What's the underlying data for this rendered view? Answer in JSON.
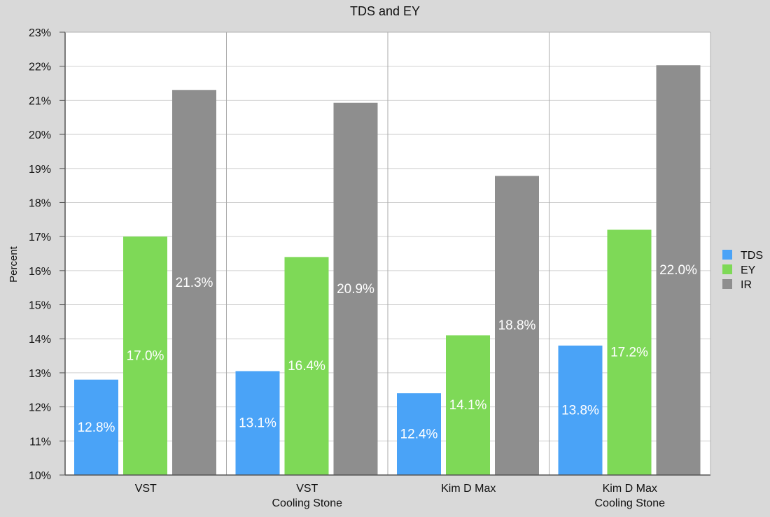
{
  "chart_data": {
    "type": "bar",
    "title": "TDS and EY",
    "xlabel": "",
    "ylabel": "Percent",
    "ylim": [
      10,
      23
    ],
    "yticks": [
      "10%",
      "11%",
      "12%",
      "13%",
      "14%",
      "15%",
      "16%",
      "17%",
      "18%",
      "19%",
      "20%",
      "21%",
      "22%",
      "23%"
    ],
    "categories": [
      [
        "VST"
      ],
      [
        "VST",
        "Cooling Stone"
      ],
      [
        "Kim D Max"
      ],
      [
        "Kim D Max",
        "Cooling Stone"
      ]
    ],
    "series": [
      {
        "name": "TDS",
        "color": "#4aa3f7",
        "values": [
          12.8,
          13.05,
          12.4,
          13.8
        ],
        "labels": [
          "12.8%",
          "13.1%",
          "12.4%",
          "13.8%"
        ]
      },
      {
        "name": "EY",
        "color": "#7ed957",
        "values": [
          17.0,
          16.4,
          14.1,
          17.2
        ],
        "labels": [
          "17.0%",
          "16.4%",
          "14.1%",
          "17.2%"
        ]
      },
      {
        "name": "IR",
        "color": "#8e8e8e",
        "values": [
          21.3,
          20.93,
          18.78,
          22.03
        ],
        "labels": [
          "21.3%",
          "20.9%",
          "18.8%",
          "22.0%"
        ]
      }
    ],
    "grid": true,
    "legend_position": "right"
  }
}
